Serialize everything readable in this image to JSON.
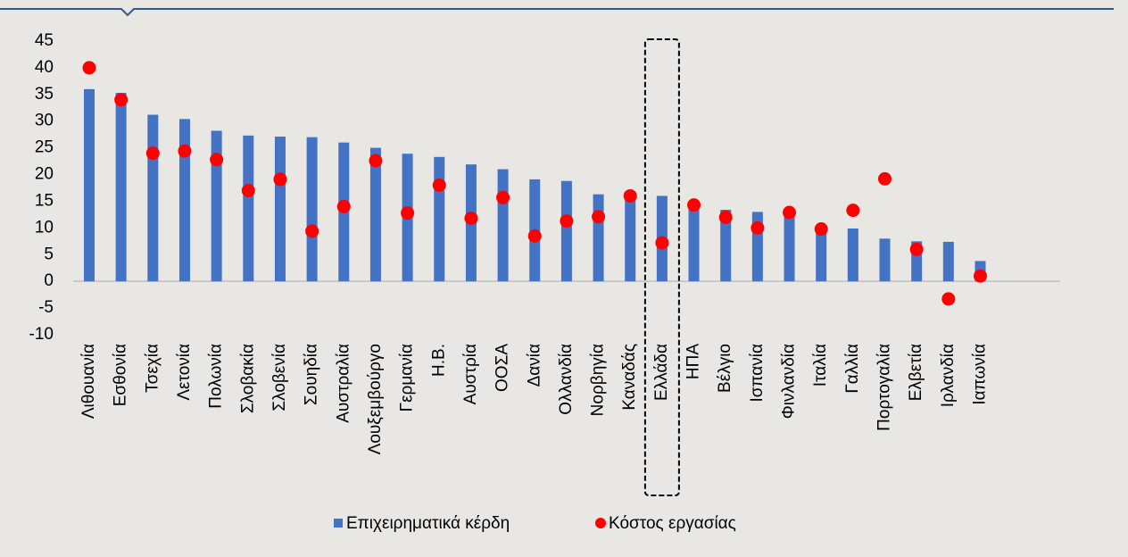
{
  "chart_data": {
    "type": "bar",
    "categories": [
      "Λιθουανία",
      "Εσθονία",
      "Τσεχία",
      "Λετονία",
      "Πολωνία",
      "Σλοβακία",
      "Σλοβενία",
      "Σουηδία",
      "Αυστραλία",
      "Λουξεμβούργο",
      "Γερμανία",
      "Η.Β.",
      "Αυστρία",
      "ΟΟΣΑ",
      "Δανία",
      "Ολλανδία",
      "Νορβηγία",
      "Καναδάς",
      "Ελλάδα",
      "ΗΠΑ",
      "Βέλγιο",
      "Ισπανία",
      "Φινλανδία",
      "Ιταλία",
      "Γαλλία",
      "Πορτογαλία",
      "Ελβετία",
      "Ιρλανδία",
      "Ιαπωνία"
    ],
    "series": [
      {
        "name": "Επιχειρηματικά κέρδη",
        "type": "bar",
        "color": "#4472c4",
        "values": [
          36,
          35.3,
          31.2,
          30.4,
          28.2,
          27.3,
          27.1,
          27,
          26,
          25,
          23.9,
          23.3,
          21.9,
          21,
          19.1,
          18.8,
          16.3,
          15.5,
          16,
          14,
          13.4,
          13,
          12.2,
          9.5,
          9.9,
          8,
          7.5,
          7.4,
          3.8
        ]
      },
      {
        "name": "Κόστος εργασίας",
        "type": "scatter",
        "color": "#ff0000",
        "values": [
          40,
          34,
          24,
          24.4,
          22.8,
          17,
          19.1,
          9.4,
          14,
          22.6,
          12.8,
          18,
          11.8,
          15.7,
          8.5,
          11.3,
          12.1,
          16,
          7.2,
          14.3,
          12,
          10,
          12.9,
          9.8,
          13.3,
          19.2,
          6,
          -3.3,
          1
        ]
      }
    ],
    "ylim": [
      -10,
      45
    ],
    "yticks": [
      -10,
      -5,
      0,
      5,
      10,
      15,
      20,
      25,
      30,
      35,
      40,
      45
    ],
    "highlight": "Ελλάδα"
  }
}
